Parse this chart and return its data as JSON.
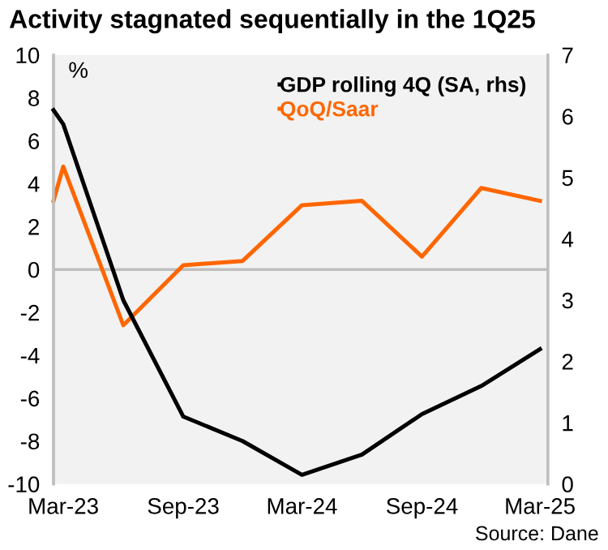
{
  "chart_data": {
    "type": "line",
    "title": "Activity stagnated sequentially in the 1Q25",
    "x": [
      "2023-02-14",
      "2023-03",
      "2023-06",
      "2023-09",
      "2023-12",
      "2024-03",
      "2024-06",
      "2024-09",
      "2024-12",
      "2025-03"
    ],
    "series": [
      {
        "name": "GDP rolling 4Q (SA, rhs)",
        "color": "#000000",
        "axis": "y2",
        "values": [
          6.1,
          5.87,
          3.0,
          1.1,
          0.7,
          0.15,
          0.48,
          1.14,
          1.6,
          2.2
        ]
      },
      {
        "name": "QoQ/Saar",
        "color": "#ff6600",
        "values": [
          3.2,
          4.8,
          -2.6,
          0.2,
          0.4,
          3.0,
          3.2,
          0.6,
          3.8,
          3.2
        ]
      }
    ],
    "xlim": [
      "2023-02-14",
      "2025-03-13"
    ],
    "xticks": [
      {
        "value": "2023-03",
        "label": "Mar-23"
      },
      {
        "value": "2023-09",
        "label": "Sep-23"
      },
      {
        "value": "2024-03",
        "label": "Mar-24"
      },
      {
        "value": "2024-09",
        "label": "Sep-24"
      },
      {
        "value": "2025-03",
        "label": "Mar-25"
      }
    ],
    "ylim": [
      -10,
      10
    ],
    "yticks": [
      -10,
      -8,
      -6,
      -4,
      -2,
      0,
      2,
      4,
      6,
      8,
      10
    ],
    "y2lim": [
      0,
      7
    ],
    "y2ticks": [
      0,
      1,
      2,
      3,
      4,
      5,
      6,
      7
    ],
    "ref_lines": [
      {
        "axis": "y",
        "value": 0,
        "color": "#bfbfbf"
      }
    ],
    "annotations": [
      "%",
      "Source: Dane"
    ],
    "legend": "top right",
    "grid": false,
    "marker": "none",
    "line_style": "solid"
  }
}
